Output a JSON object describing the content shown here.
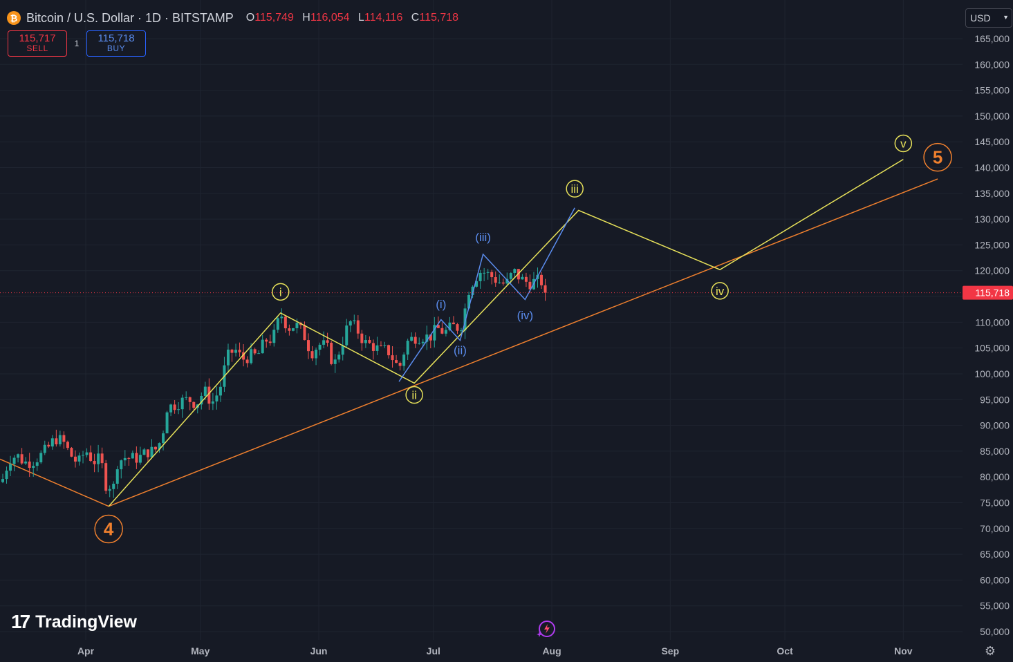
{
  "header": {
    "symbol_icon": "bitcoin-icon",
    "symbol": "Bitcoin / U.S. Dollar · 1D · BITSTAMP",
    "ohlc": [
      {
        "k": "O",
        "v": "115,749"
      },
      {
        "k": "H",
        "v": "116,054"
      },
      {
        "k": "L",
        "v": "114,116"
      },
      {
        "k": "C",
        "v": "115,718"
      }
    ]
  },
  "trade": {
    "sell_price": "115,717",
    "sell_label": "SELL",
    "quantity": "1",
    "buy_price": "115,718",
    "buy_label": "BUY"
  },
  "currency": "USD",
  "brand": "TradingView",
  "colors": {
    "background": "#161a25",
    "up": "#26a69a",
    "down": "#ef5350",
    "yellow": "#e8e25a",
    "orange": "#f0802e",
    "blue": "#5b8def",
    "price_line": "#f23645"
  },
  "chart_data": {
    "type": "candlestick",
    "title": "",
    "xlabel": "",
    "ylabel": "",
    "ylim": [
      47500,
      169000
    ],
    "yticks": [
      50000,
      55000,
      60000,
      65000,
      70000,
      75000,
      80000,
      85000,
      90000,
      95000,
      100000,
      105000,
      110000,
      115000,
      120000,
      125000,
      130000,
      135000,
      140000,
      145000,
      150000,
      155000,
      160000,
      165000
    ],
    "xticks": [
      {
        "label": "Apr",
        "date": "2025-04-01"
      },
      {
        "label": "May",
        "date": "2025-05-01"
      },
      {
        "label": "Jun",
        "date": "2025-06-01"
      },
      {
        "label": "Jul",
        "date": "2025-07-01"
      },
      {
        "label": "Aug",
        "date": "2025-08-01"
      },
      {
        "label": "Sep",
        "date": "2025-09-01"
      },
      {
        "label": "Oct",
        "date": "2025-10-01"
      },
      {
        "label": "Nov",
        "date": "2025-11-01"
      }
    ],
    "last_price": 115718,
    "last_price_label": "115,718",
    "grid": true,
    "closes_sample": [
      [
        "2025-03-10",
        79000
      ],
      [
        "2025-03-12",
        83500
      ],
      [
        "2025-03-14",
        84200
      ],
      [
        "2025-03-16",
        82800
      ],
      [
        "2025-03-18",
        83000
      ],
      [
        "2025-03-20",
        84000
      ],
      [
        "2025-03-22",
        85500
      ],
      [
        "2025-03-24",
        87500
      ],
      [
        "2025-03-26",
        86900
      ],
      [
        "2025-03-28",
        84300
      ],
      [
        "2025-03-30",
        82600
      ],
      [
        "2025-04-01",
        85200
      ],
      [
        "2025-04-03",
        83000
      ],
      [
        "2025-04-05",
        83500
      ],
      [
        "2025-04-06",
        78300
      ],
      [
        "2025-04-07",
        79200
      ],
      [
        "2025-04-08",
        76300
      ],
      [
        "2025-04-09",
        82600
      ],
      [
        "2025-04-11",
        83800
      ],
      [
        "2025-04-13",
        83600
      ],
      [
        "2025-04-15",
        83700
      ],
      [
        "2025-04-17",
        84900
      ],
      [
        "2025-04-19",
        85000
      ],
      [
        "2025-04-21",
        87500
      ],
      [
        "2025-04-22",
        93400
      ],
      [
        "2025-04-24",
        93900
      ],
      [
        "2025-04-26",
        94700
      ],
      [
        "2025-04-28",
        95000
      ],
      [
        "2025-04-30",
        94200
      ],
      [
        "2025-05-02",
        96800
      ],
      [
        "2025-05-04",
        94300
      ],
      [
        "2025-05-06",
        96800
      ],
      [
        "2025-05-08",
        103200
      ],
      [
        "2025-05-10",
        104800
      ],
      [
        "2025-05-12",
        102800
      ],
      [
        "2025-05-14",
        103500
      ],
      [
        "2025-05-16",
        103500
      ],
      [
        "2025-05-18",
        106500
      ],
      [
        "2025-05-20",
        106800
      ],
      [
        "2025-05-22",
        111700
      ],
      [
        "2025-05-24",
        108900
      ],
      [
        "2025-05-26",
        109500
      ],
      [
        "2025-05-28",
        107800
      ],
      [
        "2025-05-30",
        104000
      ],
      [
        "2025-06-01",
        105700
      ],
      [
        "2025-06-03",
        105400
      ],
      [
        "2025-06-05",
        101600
      ],
      [
        "2025-06-07",
        105800
      ],
      [
        "2025-06-09",
        110200
      ],
      [
        "2025-06-11",
        108600
      ],
      [
        "2025-06-13",
        106000
      ],
      [
        "2025-06-15",
        105500
      ],
      [
        "2025-06-17",
        104500
      ],
      [
        "2025-06-19",
        104600
      ],
      [
        "2025-06-21",
        102200
      ],
      [
        "2025-06-22",
        100900
      ],
      [
        "2025-06-24",
        106100
      ],
      [
        "2025-06-26",
        107100
      ],
      [
        "2025-06-28",
        107300
      ],
      [
        "2025-06-30",
        107100
      ],
      [
        "2025-07-02",
        108800
      ],
      [
        "2025-07-04",
        108000
      ],
      [
        "2025-07-06",
        109200
      ],
      [
        "2025-07-08",
        108900
      ],
      [
        "2025-07-09",
        111300
      ],
      [
        "2025-07-10",
        115900
      ],
      [
        "2025-07-11",
        117500
      ],
      [
        "2025-07-13",
        119800
      ],
      [
        "2025-07-14",
        119800
      ],
      [
        "2025-07-16",
        119000
      ],
      [
        "2025-07-18",
        117900
      ],
      [
        "2025-07-20",
        117300
      ],
      [
        "2025-07-22",
        119900
      ],
      [
        "2025-07-24",
        118300
      ],
      [
        "2025-07-26",
        117600
      ],
      [
        "2025-07-28",
        118000
      ],
      [
        "2025-07-30",
        117800
      ],
      [
        "2025-07-31",
        115718
      ]
    ],
    "waves": {
      "orange": [
        {
          "date": "2025-03-01",
          "price": 86200
        },
        {
          "date": "2025-04-07",
          "price": 74300
        },
        {
          "date": "2025-11-10",
          "price": 137800
        }
      ],
      "yellow": [
        {
          "date": "2025-04-07",
          "price": 74300
        },
        {
          "date": "2025-05-22",
          "price": 111800
        },
        {
          "date": "2025-06-26",
          "price": 98200
        },
        {
          "date": "2025-08-08",
          "price": 131700
        },
        {
          "date": "2025-09-14",
          "price": 120200
        },
        {
          "date": "2025-11-01",
          "price": 141600
        }
      ],
      "blue": [
        {
          "date": "2025-06-22",
          "price": 98500
        },
        {
          "date": "2025-07-03",
          "price": 110500
        },
        {
          "date": "2025-07-08",
          "price": 106500
        },
        {
          "date": "2025-07-14",
          "price": 123200
        },
        {
          "date": "2025-07-25",
          "price": 114400
        },
        {
          "date": "2025-08-07",
          "price": 132200
        }
      ]
    },
    "labels": [
      {
        "text": "4",
        "date": "2025-04-07",
        "price": 69900,
        "style": "orange-big"
      },
      {
        "text": "5",
        "date": "2025-11-10",
        "price": 142000,
        "style": "orange-big"
      },
      {
        "text": "i",
        "date": "2025-05-22",
        "price": 115900,
        "style": "yellow"
      },
      {
        "text": "ii",
        "date": "2025-06-26",
        "price": 95900,
        "style": "yellow"
      },
      {
        "text": "iii",
        "date": "2025-08-07",
        "price": 135900,
        "style": "yellow"
      },
      {
        "text": "iv",
        "date": "2025-09-14",
        "price": 116100,
        "style": "yellow"
      },
      {
        "text": "v",
        "date": "2025-11-01",
        "price": 144700,
        "style": "yellow"
      },
      {
        "text": "(i)",
        "date": "2025-07-03",
        "price": 113500,
        "style": "blue"
      },
      {
        "text": "(ii)",
        "date": "2025-07-08",
        "price": 104600,
        "style": "blue"
      },
      {
        "text": "(iii)",
        "date": "2025-07-14",
        "price": 126500,
        "style": "blue"
      },
      {
        "text": "(iv)",
        "date": "2025-07-25",
        "price": 111400,
        "style": "blue"
      }
    ]
  }
}
